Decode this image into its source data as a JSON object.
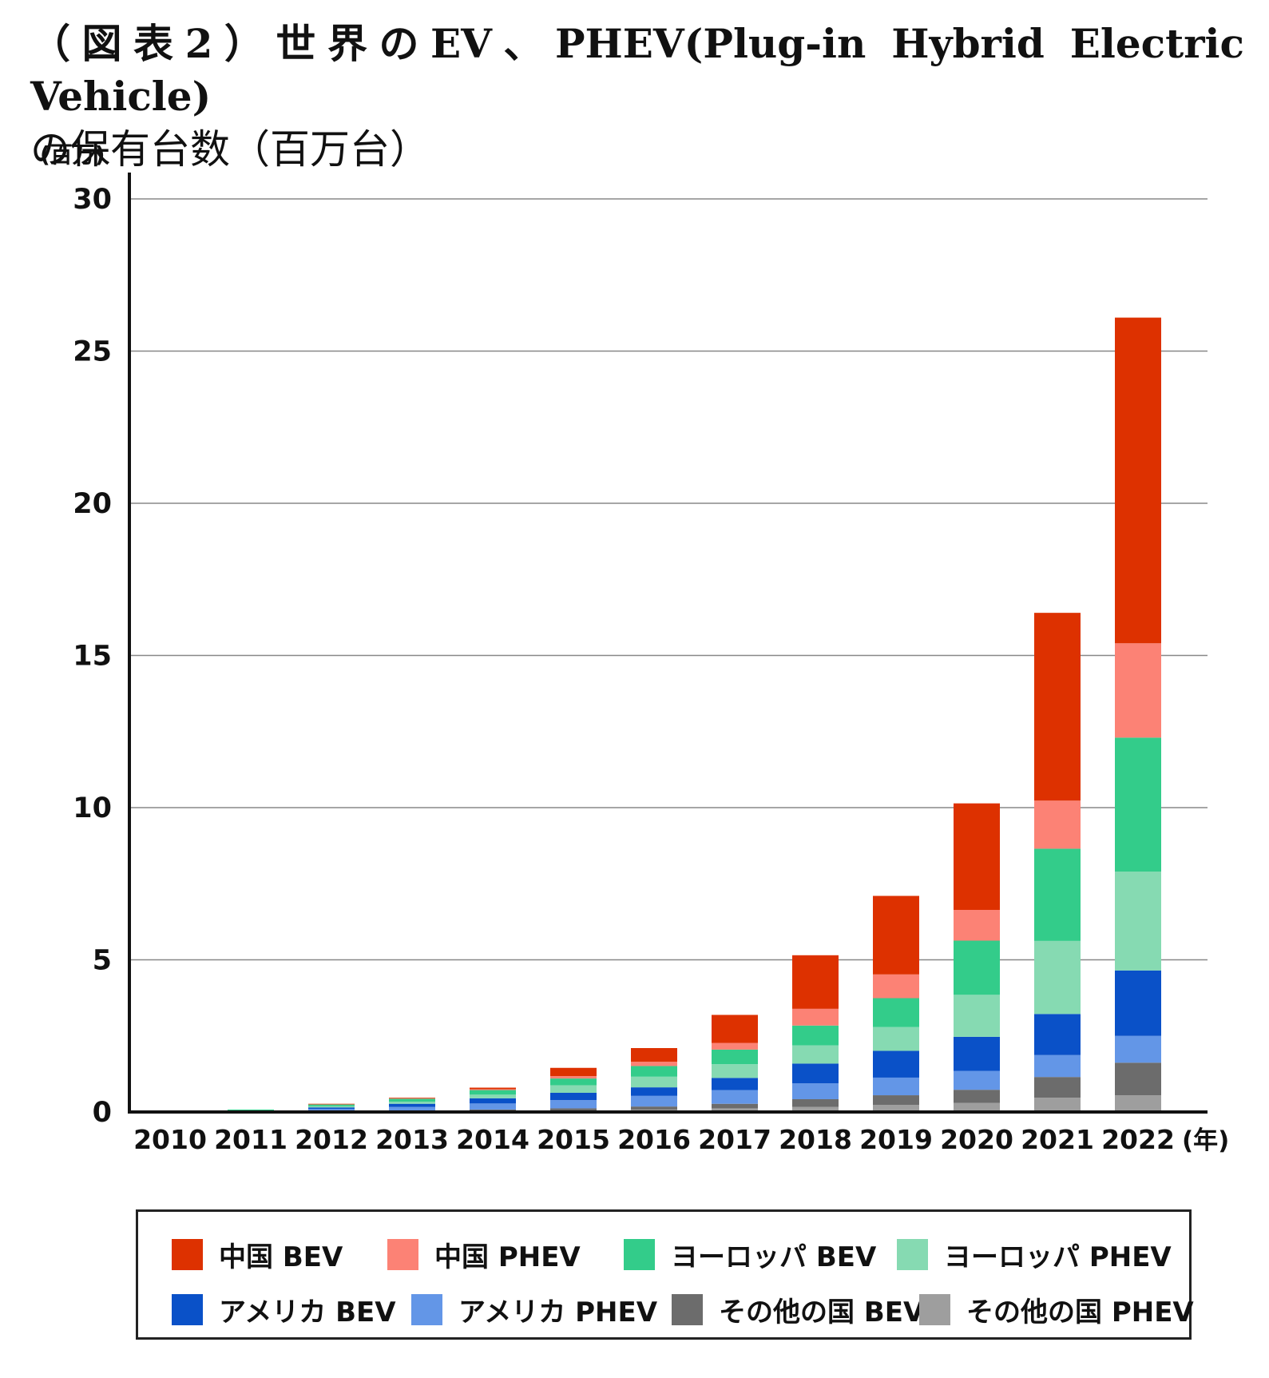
{
  "title": {
    "line1": "（図表2）世界のEV、PHEV(Plug-in Hybrid Electric Vehicle)",
    "line2": "の保有台数（百万台）"
  },
  "y_unit_label": "(百万)",
  "x_unit_label": "(年)",
  "colors": {
    "china_bev": "#dd3100",
    "china_phev": "#fc8275",
    "europe_bev": "#33cc8a",
    "europe_phev": "#86dab2",
    "usa_bev": "#0a51c8",
    "usa_phev": "#6396e7",
    "other_bev": "#6c6c6c",
    "other_phev": "#9e9e9e",
    "grid": "#888888",
    "axis": "#111111"
  },
  "chart_data": {
    "type": "bar",
    "stacked": true,
    "categories": [
      "2010",
      "2011",
      "2012",
      "2013",
      "2014",
      "2015",
      "2016",
      "2017",
      "2018",
      "2019",
      "2020",
      "2021",
      "2022"
    ],
    "ylim": [
      0,
      30
    ],
    "yticks": [
      0,
      5,
      10,
      15,
      20,
      25,
      30
    ],
    "grid": true,
    "legend_position": "bottom",
    "series": [
      {
        "name": "その他の国 PHEV",
        "key": "other_phev",
        "values": [
          0,
          0,
          0.01,
          0.02,
          0.03,
          0.05,
          0.08,
          0.12,
          0.17,
          0.23,
          0.3,
          0.47,
          0.55
        ]
      },
      {
        "name": "その他の国 BEV",
        "key": "other_bev",
        "values": [
          0,
          0,
          0.02,
          0.03,
          0.05,
          0.07,
          0.1,
          0.15,
          0.25,
          0.32,
          0.43,
          0.68,
          1.07
        ]
      },
      {
        "name": "アメリカ PHEV",
        "key": "usa_phev",
        "values": [
          0,
          0.02,
          0.07,
          0.12,
          0.2,
          0.27,
          0.35,
          0.45,
          0.52,
          0.58,
          0.62,
          0.72,
          0.88
        ]
      },
      {
        "name": "アメリカ BEV",
        "key": "usa_bev",
        "values": [
          0,
          0.01,
          0.05,
          0.1,
          0.17,
          0.24,
          0.28,
          0.4,
          0.65,
          0.88,
          1.12,
          1.35,
          2.15
        ]
      },
      {
        "name": "ヨーロッパ PHEV",
        "key": "europe_phev",
        "values": [
          0,
          0.02,
          0.04,
          0.07,
          0.12,
          0.25,
          0.35,
          0.45,
          0.6,
          0.78,
          1.38,
          2.4,
          3.25
        ]
      },
      {
        "name": "ヨーロッパ BEV",
        "key": "europe_bev",
        "values": [
          0,
          0.03,
          0.06,
          0.1,
          0.15,
          0.22,
          0.35,
          0.48,
          0.65,
          0.95,
          1.78,
          3.03,
          4.4
        ]
      },
      {
        "name": "中国 PHEV",
        "key": "china_phev",
        "values": [
          0,
          0,
          0.01,
          0.01,
          0.03,
          0.08,
          0.14,
          0.22,
          0.55,
          0.78,
          1.01,
          1.58,
          3.1
        ]
      },
      {
        "name": "中国 BEV",
        "key": "china_bev",
        "values": [
          0,
          0,
          0.01,
          0.02,
          0.05,
          0.27,
          0.45,
          0.92,
          1.76,
          2.58,
          3.5,
          6.17,
          10.7
        ]
      }
    ]
  },
  "legend": [
    {
      "label": "中国 BEV",
      "key": "china_bev"
    },
    {
      "label": "中国 PHEV",
      "key": "china_phev"
    },
    {
      "label": "ヨーロッパ BEV",
      "key": "europe_bev"
    },
    {
      "label": "ヨーロッパ PHEV",
      "key": "europe_phev"
    },
    {
      "label": "アメリカ BEV",
      "key": "usa_bev"
    },
    {
      "label": "アメリカ PHEV",
      "key": "usa_phev"
    },
    {
      "label": "その他の国 BEV",
      "key": "other_bev"
    },
    {
      "label": "その他の国 PHEV",
      "key": "other_phev"
    }
  ]
}
